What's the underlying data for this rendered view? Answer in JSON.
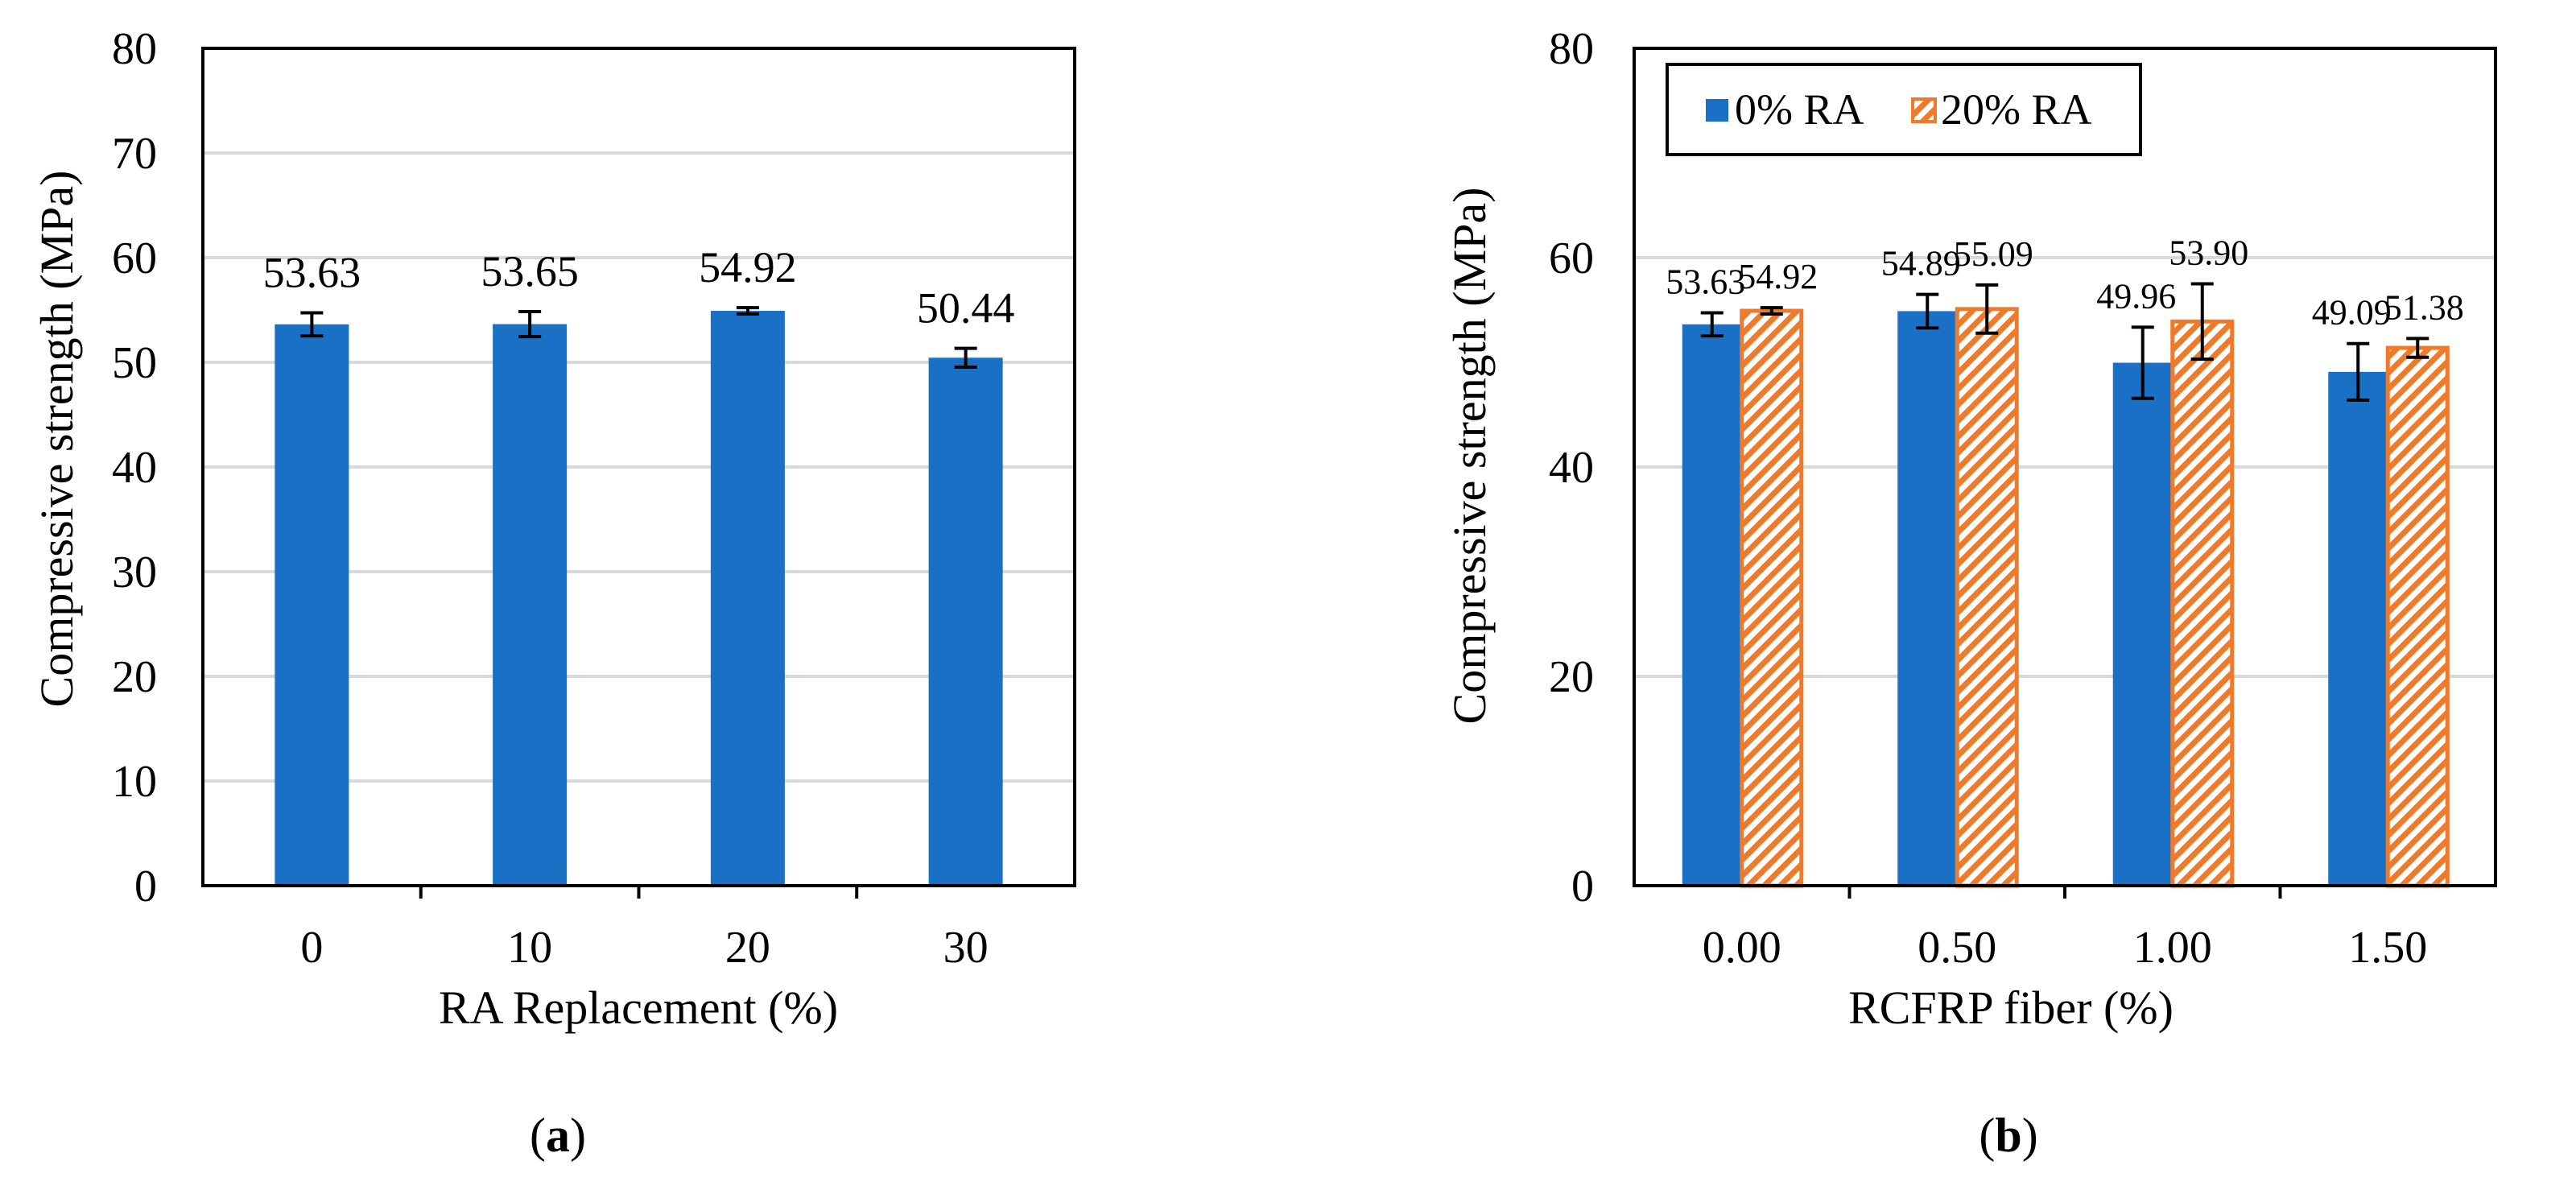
{
  "colors": {
    "series1": "#1a70c4",
    "series2": "#ef7a2a",
    "grid": "#d9d9d9"
  },
  "chart_data": [
    {
      "type": "bar",
      "panel_label": "a",
      "categories": [
        "0",
        "10",
        "20",
        "30"
      ],
      "series": [
        {
          "name": "0% RA",
          "values": [
            53.63,
            53.65,
            54.92,
            50.44
          ],
          "errors": [
            1.1,
            1.2,
            0.3,
            0.9
          ]
        }
      ],
      "data_labels": [
        "53.63",
        "53.65",
        "54.92",
        "50.44"
      ],
      "xlabel": "RA Replacement (%)",
      "ylabel": "Compressive strength (MPa)",
      "ylim": [
        0,
        80
      ],
      "yticks": [
        "0",
        "10",
        "20",
        "30",
        "40",
        "50",
        "60",
        "70",
        "80"
      ],
      "yticks_values": [
        0,
        10,
        20,
        30,
        40,
        50,
        60,
        70,
        80
      ],
      "grid": true
    },
    {
      "type": "bar",
      "panel_label": "b",
      "categories": [
        "0.00",
        "0.50",
        "1.00",
        "1.50"
      ],
      "series": [
        {
          "name": "0% RA",
          "values": [
            53.63,
            54.89,
            49.96,
            49.09
          ],
          "errors": [
            1.1,
            1.6,
            3.4,
            2.7
          ],
          "labels": [
            "53.63",
            "54.89",
            "49.96",
            "49.09"
          ]
        },
        {
          "name": "20% RA",
          "values": [
            54.92,
            55.09,
            53.9,
            51.38
          ],
          "errors": [
            0.3,
            2.3,
            3.6,
            0.9
          ],
          "labels": [
            "54.92",
            "55.09",
            "53.90",
            "51.38"
          ]
        }
      ],
      "legend": [
        "0% RA",
        "20% RA"
      ],
      "legend_position": "top-left",
      "xlabel": "RCFRP fiber (%)",
      "ylabel": "Compressive strength (MPa)",
      "ylim": [
        0,
        80
      ],
      "yticks": [
        "0",
        "20",
        "40",
        "60",
        "80"
      ],
      "yticks_values": [
        0,
        20,
        40,
        60,
        80
      ],
      "grid": true
    }
  ]
}
